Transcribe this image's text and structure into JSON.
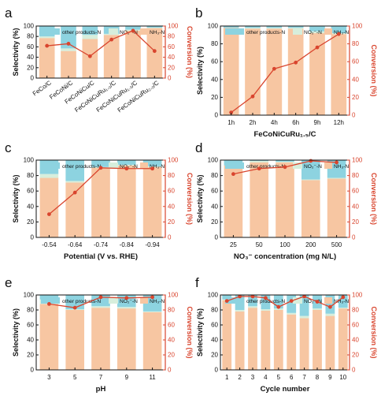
{
  "colors": {
    "nh3": "#F7C6A2",
    "no2": "#D7EEDC",
    "other": "#8DD3E0",
    "line": "#D9452E",
    "axis_right": "#D9452E"
  },
  "legend": {
    "other_label": "other products-N",
    "no2_label": "NO₂⁻-N",
    "nh3_label": "NH₃-N"
  },
  "chart_data": [
    {
      "panel": "a",
      "type": "bar",
      "categories": [
        "FeCo/C",
        "FeCoNi/C",
        "FeCoNiCu/C",
        "FeCoNiCuRu₁.₀/C",
        "FeCoNiCuRu₁.₅/C",
        "FeCoNiCuRu₂.₀/C"
      ],
      "nh3": [
        77,
        52,
        75,
        83,
        91,
        96
      ],
      "no2": [
        3,
        5,
        8,
        2,
        2,
        1
      ],
      "other": [
        20,
        43,
        17,
        15,
        7,
        3
      ],
      "conversion": [
        62,
        66,
        42,
        74,
        91,
        52
      ],
      "xlabel": "",
      "ylabel": "Selectivity (%)",
      "y2label": "Conversion (%)",
      "ylim": [
        0,
        100
      ],
      "yticks": [
        "0",
        "20",
        "40",
        "60",
        "80",
        "100"
      ]
    },
    {
      "panel": "b",
      "type": "bar",
      "categories": [
        "1h",
        "2h",
        "4h",
        "6h",
        "9h",
        "12h"
      ],
      "nh3": [
        98,
        97,
        97,
        97,
        92,
        91
      ],
      "no2": [
        0,
        1,
        1,
        1,
        2,
        1
      ],
      "other": [
        2,
        2,
        2,
        2,
        6,
        8
      ],
      "conversion": [
        3,
        21,
        52,
        59,
        76,
        91
      ],
      "xlabel": "FeCoNiCuRu₁.₅/C",
      "ylabel": "Selectivity (%)",
      "y2label": "Conversion (%)",
      "ylim": [
        0,
        100
      ],
      "yticks": [
        "0",
        "20",
        "40",
        "60",
        "80",
        "100"
      ]
    },
    {
      "panel": "c",
      "type": "bar",
      "categories": [
        "-0.54",
        "-0.64",
        "-0.74",
        "-0.84",
        "-0.94"
      ],
      "nh3": [
        77,
        71,
        90,
        93,
        91
      ],
      "no2": [
        5,
        2,
        1,
        1,
        1
      ],
      "other": [
        18,
        27,
        9,
        6,
        8
      ],
      "conversion": [
        30,
        58,
        90,
        89,
        89
      ],
      "xlabel": "Potential (V vs. RHE)",
      "ylabel": "Selectivity (%)",
      "y2label": "Conversion (%)",
      "ylim": [
        0,
        100
      ],
      "yticks": [
        "0",
        "20",
        "40",
        "60",
        "80",
        "100"
      ]
    },
    {
      "panel": "d",
      "type": "bar",
      "categories": [
        "25",
        "50",
        "100",
        "200",
        "500"
      ],
      "nh3": [
        93,
        97,
        97,
        74,
        76
      ],
      "no2": [
        0,
        2,
        1,
        1,
        1
      ],
      "other": [
        7,
        1,
        2,
        25,
        23
      ],
      "conversion": [
        82,
        89,
        91,
        99,
        97
      ],
      "xlabel": "NO₃⁻ concentration (mg N/L)",
      "ylabel": "Selectivity (%)",
      "y2label": "Conversion (%)",
      "ylim": [
        0,
        100
      ],
      "yticks": [
        "0",
        "20",
        "40",
        "60",
        "80",
        "100"
      ]
    },
    {
      "panel": "e",
      "type": "bar",
      "categories": [
        "3",
        "5",
        "7",
        "9",
        "11"
      ],
      "nh3": [
        88,
        80,
        83,
        82,
        77
      ],
      "no2": [
        6,
        1,
        2,
        2,
        1
      ],
      "other": [
        6,
        19,
        15,
        16,
        22
      ],
      "conversion": [
        88,
        83,
        97,
        96,
        97
      ],
      "xlabel": "pH",
      "ylabel": "Selectivity (%)",
      "y2label": "Conversion (%)",
      "ylim": [
        0,
        100
      ],
      "yticks": [
        "0",
        "20",
        "40",
        "60",
        "80",
        "100"
      ]
    },
    {
      "panel": "f",
      "type": "bar",
      "categories": [
        "1",
        "2",
        "3",
        "4",
        "5",
        "6",
        "7",
        "8",
        "9",
        "10"
      ],
      "nh3": [
        93,
        78,
        83,
        79,
        80,
        74,
        69,
        80,
        72,
        82
      ],
      "no2": [
        1,
        2,
        2,
        2,
        2,
        2,
        3,
        2,
        3,
        1
      ],
      "other": [
        6,
        20,
        15,
        19,
        18,
        24,
        28,
        18,
        25,
        17
      ],
      "conversion": [
        92,
        98,
        98,
        96,
        84,
        92,
        98,
        91,
        84,
        97
      ],
      "xlabel": "Cycle number",
      "ylabel": "Selectivity (%)",
      "y2label": "Conversion (%)",
      "ylim": [
        0,
        100
      ],
      "yticks": [
        "0",
        "20",
        "40",
        "60",
        "80",
        "100"
      ]
    }
  ]
}
